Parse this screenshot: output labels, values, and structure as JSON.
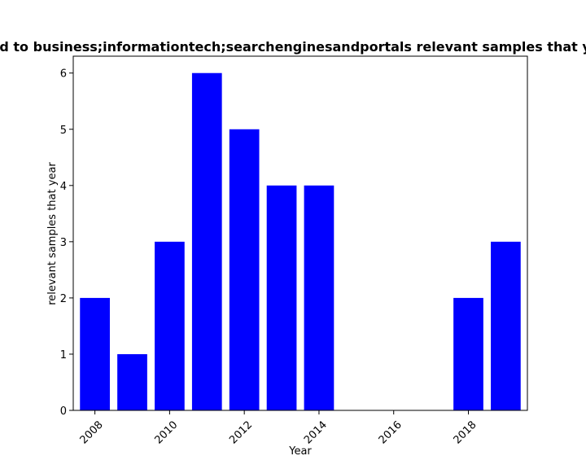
{
  "chart_data": {
    "type": "bar",
    "title": "d to business;informationtech;searchenginesandportals relevant samples that ye",
    "xlabel": "Year",
    "ylabel": "relevant samples that year",
    "x": [
      2008,
      2009,
      2010,
      2011,
      2012,
      2013,
      2014,
      2018,
      2019
    ],
    "values": [
      2,
      1,
      3,
      6,
      5,
      4,
      4,
      2,
      3
    ],
    "xlim": [
      2007.42,
      2019.58
    ],
    "ylim": [
      0,
      6.3
    ],
    "xticks": [
      2008,
      2010,
      2012,
      2014,
      2016,
      2018
    ],
    "yticks": [
      0,
      1,
      2,
      3,
      4,
      5,
      6
    ],
    "bar_color": "#0000ff",
    "grid": false,
    "legend": "none"
  }
}
